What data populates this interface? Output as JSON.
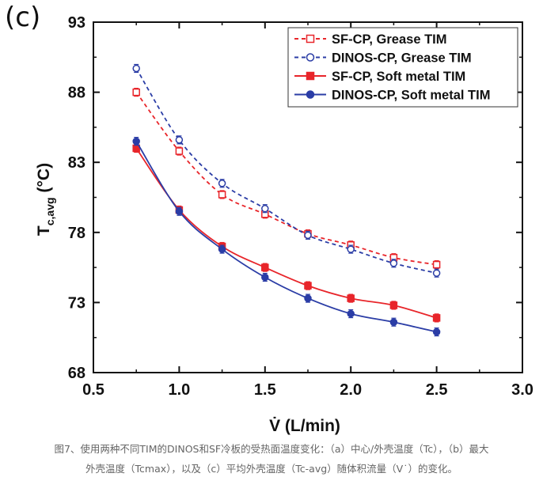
{
  "panel_label": "(c)",
  "caption": {
    "line1": "图7、使用两种不同TIM的DINOS和SF冷板的受热面温度变化：（a）中心/外壳温度（Tc），（b）最大",
    "line2": "外壳温度（Tcmax），以及（c）平均外壳温度（Tc-avg）随体积流量（V˙）的变化。"
  },
  "chart_data": {
    "type": "line",
    "xlabel": "V̇ (L/min)",
    "ylabel_main": "T",
    "ylabel_sub": "c,avg",
    "ylabel_unit": "(°C)",
    "xlim": [
      0.5,
      3.0
    ],
    "ylim": [
      68,
      93
    ],
    "xticks": [
      "0.5",
      "1.0",
      "1.5",
      "2.0",
      "2.5",
      "3.0"
    ],
    "yticks": [
      "68",
      "73",
      "78",
      "83",
      "88",
      "93"
    ],
    "grid": false,
    "legend_position": "top-right",
    "x": [
      0.75,
      1.0,
      1.25,
      1.5,
      1.75,
      2.0,
      2.25,
      2.5
    ],
    "series": [
      {
        "name": "SF-CP, Grease TIM",
        "color": "#e8252a",
        "marker": "square",
        "filled": false,
        "dashed": true,
        "values": [
          88.0,
          83.8,
          80.7,
          79.3,
          77.9,
          77.1,
          76.2,
          75.7
        ]
      },
      {
        "name": "DINOS-CP, Grease TIM",
        "color": "#2b3da6",
        "marker": "circle",
        "filled": false,
        "dashed": true,
        "values": [
          89.7,
          84.6,
          81.5,
          79.7,
          77.8,
          76.8,
          75.8,
          75.1
        ]
      },
      {
        "name": "SF-CP, Soft metal TIM",
        "color": "#e8252a",
        "marker": "square",
        "filled": true,
        "dashed": false,
        "values": [
          84.0,
          79.6,
          77.0,
          75.5,
          74.2,
          73.3,
          72.8,
          71.9
        ]
      },
      {
        "name": "DINOS-CP, Soft metal TIM",
        "color": "#2b3da6",
        "marker": "circle",
        "filled": true,
        "dashed": false,
        "values": [
          84.5,
          79.5,
          76.8,
          74.8,
          73.3,
          72.2,
          71.6,
          70.9
        ]
      }
    ]
  }
}
